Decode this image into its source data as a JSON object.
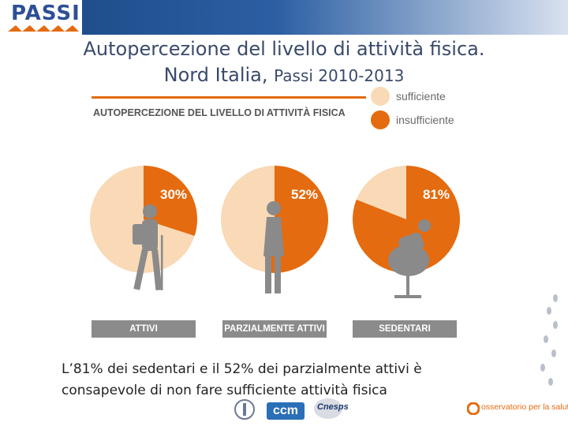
{
  "header": {
    "logo_text": "PASSI"
  },
  "title": {
    "line1": "Autopercezione del livello di attività fisica.",
    "line2_main": "Nord Italia,",
    "line2_small": "Passi 2010-2013"
  },
  "chart_data": {
    "type": "pie",
    "title": "AUTOPERCEZIONE DEL LIVELLO DI ATTIVITÀ FISICA",
    "legend": [
      {
        "label": "sufficiente",
        "color": "#f9d9b6"
      },
      {
        "label": "insufficiente",
        "color": "#e46b0f"
      }
    ],
    "legend_position": "top-right",
    "categories": [
      "ATTIVI",
      "PARZIALMENTE ATTIVI",
      "SEDENTARI"
    ],
    "series": [
      {
        "name": "insufficiente",
        "values": [
          30,
          52,
          81
        ]
      },
      {
        "name": "sufficiente",
        "values": [
          70,
          48,
          19
        ]
      }
    ],
    "data_labels": [
      "30%",
      "52%",
      "81%"
    ],
    "colors": {
      "insufficiente": "#e46b0f",
      "sufficiente": "#f9d9b6",
      "figure": "#8a8a8a",
      "bar": "#8b8b8b"
    }
  },
  "caption": {
    "line1": "L’81% dei sedentari e il 52% dei parzialmente attivi è",
    "line2": "consapevole di non fare sufficiente attività fisica"
  },
  "footer": {
    "ccm_label": "ccm",
    "cnesps_label": "Cnesps",
    "osservatorio_label": "osservatorio per la salute"
  }
}
